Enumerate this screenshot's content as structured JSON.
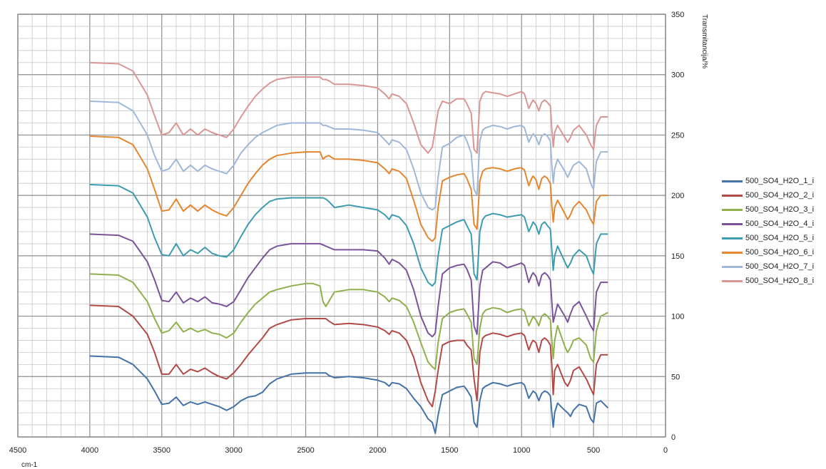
{
  "chart_data": {
    "type": "line",
    "title": "",
    "xlabel": "cm-1",
    "ylabel": "Transmitancija/%",
    "xlim": [
      4500,
      0
    ],
    "ylim": [
      0,
      350
    ],
    "x_ticks": [
      "4500",
      "4000",
      "3500",
      "3000",
      "2500",
      "2000",
      "1500",
      "1000",
      "500",
      "0"
    ],
    "y_ticks": [
      "0",
      "50",
      "100",
      "150",
      "200",
      "250",
      "300",
      "350"
    ],
    "grid": true,
    "legend_position": "right",
    "x": [
      4000,
      3800,
      3700,
      3600,
      3550,
      3500,
      3450,
      3400,
      3350,
      3300,
      3250,
      3200,
      3150,
      3100,
      3050,
      3000,
      2950,
      2900,
      2850,
      2800,
      2750,
      2700,
      2600,
      2500,
      2450,
      2400,
      2380,
      2360,
      2340,
      2300,
      2200,
      2100,
      2000,
      1950,
      1920,
      1900,
      1850,
      1800,
      1750,
      1700,
      1650,
      1620,
      1600,
      1580,
      1550,
      1500,
      1450,
      1400,
      1380,
      1350,
      1330,
      1310,
      1290,
      1270,
      1250,
      1200,
      1150,
      1100,
      1050,
      1000,
      980,
      950,
      930,
      920,
      900,
      880,
      860,
      840,
      820,
      800,
      790,
      780,
      770,
      750,
      700,
      680,
      660,
      640,
      600,
      550,
      520,
      500,
      480,
      450,
      400
    ],
    "series": [
      {
        "name": "500_SO4_H2O_1_i",
        "color": "#4472a8",
        "values": [
          67,
          66,
          60,
          48,
          38,
          27,
          28,
          33,
          26,
          29,
          27,
          29,
          27,
          25,
          22,
          25,
          30,
          33,
          34,
          37,
          44,
          48,
          52,
          53,
          53,
          53,
          53,
          53,
          51,
          49,
          50,
          49,
          47,
          45,
          42,
          45,
          44,
          40,
          32,
          25,
          15,
          12,
          3,
          18,
          35,
          38,
          41,
          42,
          39,
          33,
          12,
          8,
          30,
          40,
          42,
          45,
          44,
          42,
          44,
          45,
          43,
          32,
          36,
          38,
          36,
          30,
          36,
          38,
          37,
          34,
          20,
          8,
          20,
          28,
          22,
          20,
          17,
          22,
          27,
          25,
          15,
          12,
          28,
          30,
          24
        ]
      },
      {
        "name": "500_SO4_H2O_2_i",
        "color": "#b14a46",
        "values": [
          109,
          108,
          100,
          85,
          70,
          52,
          52,
          60,
          52,
          56,
          54,
          57,
          53,
          50,
          48,
          53,
          60,
          68,
          75,
          82,
          90,
          93,
          97,
          98,
          98,
          98,
          98,
          98,
          96,
          93,
          94,
          93,
          91,
          88,
          85,
          88,
          86,
          80,
          66,
          45,
          30,
          25,
          38,
          55,
          76,
          79,
          80,
          80,
          76,
          72,
          48,
          30,
          70,
          82,
          84,
          86,
          85,
          83,
          85,
          86,
          84,
          72,
          78,
          80,
          78,
          70,
          80,
          82,
          80,
          76,
          60,
          35,
          55,
          60,
          45,
          42,
          47,
          55,
          58,
          48,
          40,
          35,
          60,
          68,
          68
        ]
      },
      {
        "name": "500_SO4_H2O_3_i",
        "color": "#8fb04c",
        "values": [
          135,
          134,
          128,
          112,
          98,
          86,
          88,
          95,
          87,
          90,
          87,
          89,
          86,
          85,
          82,
          86,
          95,
          103,
          110,
          115,
          120,
          122,
          125,
          127,
          127,
          125,
          112,
          108,
          112,
          120,
          122,
          122,
          120,
          116,
          112,
          115,
          113,
          108,
          95,
          78,
          62,
          58,
          56,
          78,
          98,
          103,
          105,
          106,
          102,
          95,
          65,
          60,
          90,
          102,
          105,
          107,
          106,
          103,
          105,
          106,
          104,
          92,
          97,
          100,
          97,
          92,
          100,
          102,
          100,
          97,
          80,
          65,
          80,
          92,
          75,
          70,
          74,
          80,
          82,
          76,
          65,
          62,
          88,
          100,
          103
        ]
      },
      {
        "name": "500_SO4_H2O_4_i",
        "color": "#7a5499",
        "values": [
          168,
          167,
          162,
          145,
          130,
          113,
          112,
          120,
          111,
          115,
          112,
          116,
          111,
          110,
          108,
          112,
          122,
          132,
          140,
          148,
          155,
          158,
          160,
          160,
          160,
          160,
          159,
          158,
          157,
          155,
          155,
          155,
          154,
          148,
          143,
          147,
          144,
          138,
          122,
          100,
          86,
          83,
          86,
          108,
          135,
          140,
          142,
          143,
          139,
          130,
          92,
          85,
          125,
          138,
          140,
          145,
          144,
          140,
          142,
          144,
          142,
          128,
          134,
          136,
          133,
          125,
          134,
          136,
          134,
          130,
          112,
          95,
          100,
          110,
          100,
          95,
          102,
          108,
          112,
          100,
          92,
          88,
          120,
          128,
          128
        ]
      },
      {
        "name": "500_SO4_H2O_5_i",
        "color": "#3d9bb0",
        "values": [
          209,
          208,
          202,
          182,
          165,
          151,
          150,
          160,
          150,
          155,
          152,
          157,
          152,
          150,
          149,
          155,
          166,
          176,
          184,
          190,
          195,
          197,
          198,
          198,
          198,
          198,
          198,
          197,
          195,
          190,
          192,
          190,
          188,
          184,
          180,
          184,
          182,
          175,
          160,
          140,
          128,
          125,
          128,
          150,
          172,
          175,
          178,
          180,
          175,
          168,
          135,
          130,
          170,
          180,
          183,
          185,
          184,
          182,
          183,
          184,
          182,
          170,
          175,
          178,
          175,
          168,
          176,
          178,
          175,
          172,
          155,
          138,
          150,
          158,
          145,
          140,
          144,
          150,
          155,
          150,
          140,
          135,
          160,
          168,
          168
        ]
      },
      {
        "name": "500_SO4_H2O_6_i",
        "color": "#e38630",
        "values": [
          249,
          248,
          242,
          222,
          205,
          187,
          188,
          197,
          187,
          192,
          187,
          192,
          188,
          185,
          183,
          190,
          200,
          210,
          218,
          225,
          230,
          233,
          235,
          236,
          236,
          236,
          230,
          232,
          233,
          230,
          230,
          229,
          227,
          222,
          218,
          222,
          220,
          214,
          196,
          176,
          165,
          162,
          165,
          190,
          212,
          215,
          217,
          218,
          214,
          205,
          176,
          172,
          212,
          220,
          222,
          223,
          222,
          220,
          222,
          223,
          221,
          208,
          214,
          216,
          213,
          205,
          214,
          216,
          214,
          210,
          192,
          178,
          190,
          196,
          185,
          180,
          184,
          190,
          195,
          188,
          180,
          176,
          195,
          200,
          200
        ]
      },
      {
        "name": "500_SO4_H2O_7_i",
        "color": "#9fb7d9",
        "values": [
          278,
          277,
          270,
          250,
          233,
          220,
          222,
          230,
          220,
          225,
          220,
          225,
          222,
          220,
          218,
          225,
          235,
          242,
          248,
          252,
          255,
          258,
          260,
          260,
          260,
          260,
          258,
          258,
          257,
          255,
          255,
          254,
          252,
          246,
          242,
          246,
          244,
          238,
          222,
          202,
          190,
          188,
          190,
          215,
          240,
          243,
          248,
          250,
          245,
          235,
          205,
          200,
          245,
          254,
          256,
          258,
          257,
          255,
          257,
          258,
          256,
          244,
          249,
          251,
          248,
          242,
          249,
          251,
          249,
          245,
          225,
          210,
          222,
          230,
          220,
          215,
          220,
          225,
          228,
          222,
          210,
          205,
          228,
          236,
          236
        ]
      },
      {
        "name": "500_SO4_H2O_8_i",
        "color": "#d99694",
        "values": [
          310,
          309,
          303,
          283,
          266,
          250,
          252,
          260,
          250,
          255,
          250,
          255,
          252,
          250,
          248,
          255,
          265,
          274,
          282,
          288,
          293,
          296,
          298,
          298,
          298,
          298,
          296,
          296,
          295,
          292,
          292,
          291,
          289,
          284,
          280,
          284,
          282,
          276,
          260,
          242,
          235,
          240,
          255,
          270,
          278,
          276,
          280,
          280,
          276,
          268,
          238,
          235,
          278,
          284,
          286,
          285,
          284,
          282,
          284,
          286,
          284,
          272,
          277,
          279,
          276,
          270,
          277,
          279,
          277,
          274,
          255,
          240,
          252,
          258,
          248,
          244,
          248,
          254,
          258,
          250,
          242,
          238,
          258,
          265,
          265
        ]
      }
    ]
  }
}
